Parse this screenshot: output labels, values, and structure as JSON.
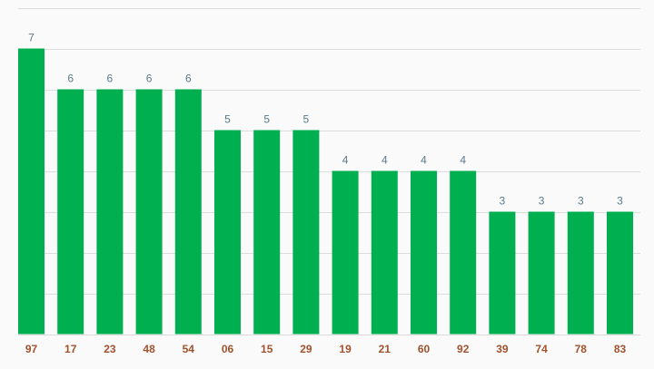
{
  "chart_data": {
    "type": "bar",
    "categories": [
      "97",
      "17",
      "23",
      "48",
      "54",
      "06",
      "15",
      "29",
      "19",
      "21",
      "60",
      "92",
      "39",
      "74",
      "78",
      "83"
    ],
    "values": [
      7,
      6,
      6,
      6,
      6,
      5,
      5,
      5,
      4,
      4,
      4,
      4,
      3,
      3,
      3,
      3
    ],
    "ylim": [
      0,
      8
    ],
    "grid": true,
    "data_labels": true,
    "colors": {
      "bar": "#00b050",
      "value_label": "#5a7a8c",
      "category_label": "#a0522d",
      "grid": "#dcdcdc",
      "background": "#fafafa"
    }
  }
}
